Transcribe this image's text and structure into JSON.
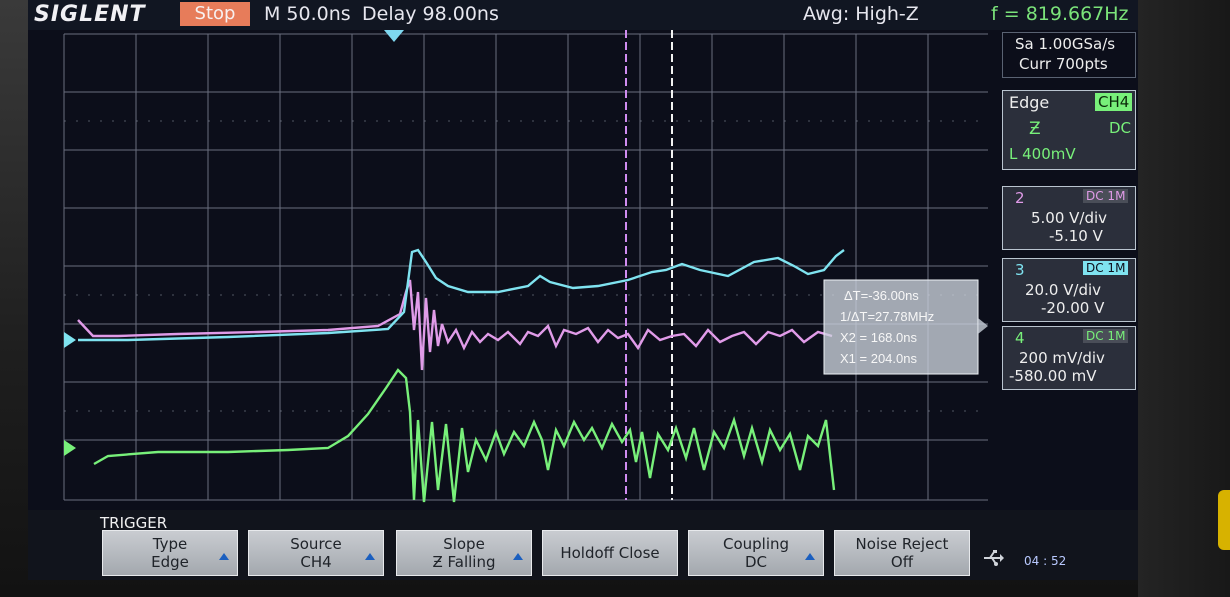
{
  "header": {
    "brand": "SIGLENT",
    "run_state": "Stop",
    "timebase": "M 50.0ns",
    "delay": "Delay 98.00ns",
    "awg": "Awg: High-Z",
    "frequency": "f = 819.667Hz"
  },
  "acquisition": {
    "sample_rate": "Sa 1.00GSa/s",
    "memory": "Curr 700pts"
  },
  "trigger_info": {
    "type": "Edge",
    "source": "CH4",
    "slope_symbol": "Ƶ",
    "coupling": "DC",
    "level": "L  400mV"
  },
  "channels": [
    {
      "number": "2",
      "coupling": "DC 1M",
      "scale": "5.00 V/div",
      "offset": "-5.10 V",
      "color": "#e09be8"
    },
    {
      "number": "3",
      "coupling": "DC 1M",
      "scale": "20.0 V/div",
      "offset": "-20.00 V",
      "color": "#7fe3f0"
    },
    {
      "number": "4",
      "coupling": "DC 1M",
      "scale": "200 mV/div",
      "offset": "-580.00 mV",
      "color": "#78f07a"
    }
  ],
  "cursor_readout": {
    "delta_t": "ΔT=-36.00ns",
    "inv_delta_t": "1/ΔT=27.78MHz",
    "x2": "X2 = 168.0ns",
    "x1": "X1 = 204.0ns"
  },
  "softkey_menu": {
    "title": "TRIGGER",
    "keys": [
      {
        "line1": "Type",
        "line2": "Edge"
      },
      {
        "line1": "Source",
        "line2": "CH4"
      },
      {
        "line1": "Slope",
        "line2": "Ƶ Falling"
      },
      {
        "line1": "Holdoff Close",
        "line2": ""
      },
      {
        "line1": "Coupling",
        "line2": "DC"
      },
      {
        "line1": "Noise Reject",
        "line2": "Off"
      }
    ]
  },
  "status": {
    "clock": "04 : 52",
    "usb_icon": "usb-icon"
  },
  "colors": {
    "grid": "#8a8fa0",
    "ch2": "#e09be8",
    "ch3": "#7fe3f0",
    "ch4": "#78f07a",
    "cursor": "#d08cf0",
    "trigger_marker": "#7fd8f0"
  }
}
